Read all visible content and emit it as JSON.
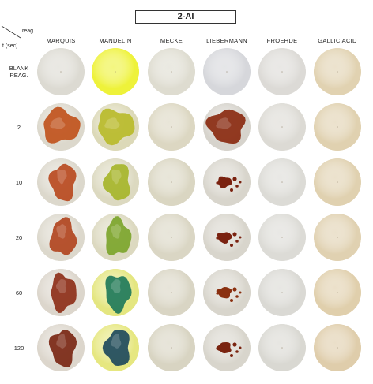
{
  "title": "2-AI",
  "corner": {
    "reag": "reag",
    "time": "t (sec)"
  },
  "columns": [
    "MARQUIS",
    "MANDELIN",
    "MECKE",
    "LIEBERMANN",
    "FROEHDE",
    "GALLIC ACID"
  ],
  "rows": [
    {
      "label": "BLANK\nREAG.",
      "label_lines": [
        "BLANK",
        "REAG."
      ]
    },
    {
      "label": "2",
      "label_lines": [
        "2"
      ]
    },
    {
      "label": "10",
      "label_lines": [
        "10"
      ]
    },
    {
      "label": "20",
      "label_lines": [
        "20"
      ]
    },
    {
      "label": "60",
      "label_lines": [
        "60"
      ]
    },
    {
      "label": "120",
      "label_lines": [
        "120"
      ]
    }
  ],
  "cells": [
    [
      {
        "bg": "#dcdad2",
        "stain": "none"
      },
      {
        "bg": "#eef23a",
        "stain": "none"
      },
      {
        "bg": "#dedcd0",
        "stain": "none"
      },
      {
        "bg": "#d6d7db",
        "stain": "none"
      },
      {
        "bg": "#dcdad6",
        "stain": "none"
      },
      {
        "bg": "#e1d2b1",
        "stain": "none"
      }
    ],
    [
      {
        "bg": "#dcd8cc",
        "stain": "blob",
        "color": "#c0531c"
      },
      {
        "bg": "#dcd9b8",
        "stain": "blob",
        "color": "#b9bb2a"
      },
      {
        "bg": "#dcd7c2",
        "stain": "none"
      },
      {
        "bg": "#d6d3cc",
        "stain": "blob",
        "color": "#8a2a10"
      },
      {
        "bg": "#dcdad4",
        "stain": "none"
      },
      {
        "bg": "#e0d1b0",
        "stain": "none"
      }
    ],
    [
      {
        "bg": "#dcd8cc",
        "stain": "partial",
        "color": "#b84a1f"
      },
      {
        "bg": "#dcd9c0",
        "stain": "partial",
        "color": "#a6b52a"
      },
      {
        "bg": "#dad6c2",
        "stain": "none"
      },
      {
        "bg": "#d8d5cc",
        "stain": "spots",
        "color": "#7a2210"
      },
      {
        "bg": "#dcdbd6",
        "stain": "none"
      },
      {
        "bg": "#e0d1b0",
        "stain": "none"
      }
    ],
    [
      {
        "bg": "#dcd8cc",
        "stain": "partial",
        "color": "#b14520"
      },
      {
        "bg": "#dcd9c0",
        "stain": "partial",
        "color": "#7ca52b"
      },
      {
        "bg": "#dad6c4",
        "stain": "none"
      },
      {
        "bg": "#d8d5cc",
        "stain": "spots",
        "color": "#7a2210"
      },
      {
        "bg": "#dcdbd6",
        "stain": "none"
      },
      {
        "bg": "#e0d1b1",
        "stain": "none"
      }
    ],
    [
      {
        "bg": "#dcd6cc",
        "stain": "partial",
        "color": "#8d2f18"
      },
      {
        "bg": "#e4e680",
        "stain": "partial",
        "color": "#1f7a5a"
      },
      {
        "bg": "#d9d5c4",
        "stain": "none"
      },
      {
        "bg": "#d8d5cc",
        "stain": "spots",
        "color": "#8a3010"
      },
      {
        "bg": "#dad9d4",
        "stain": "none"
      },
      {
        "bg": "#e0cfac",
        "stain": "none"
      }
    ],
    [
      {
        "bg": "#dcd6cc",
        "stain": "partial",
        "color": "#7a2714"
      },
      {
        "bg": "#e6e780",
        "stain": "partial",
        "color": "#1e4a5c"
      },
      {
        "bg": "#d8d4c2",
        "stain": "none"
      },
      {
        "bg": "#d8d5cc",
        "stain": "spots",
        "color": "#7a2410"
      },
      {
        "bg": "#d9d8d2",
        "stain": "none"
      },
      {
        "bg": "#dfcdab",
        "stain": "none"
      }
    ]
  ]
}
